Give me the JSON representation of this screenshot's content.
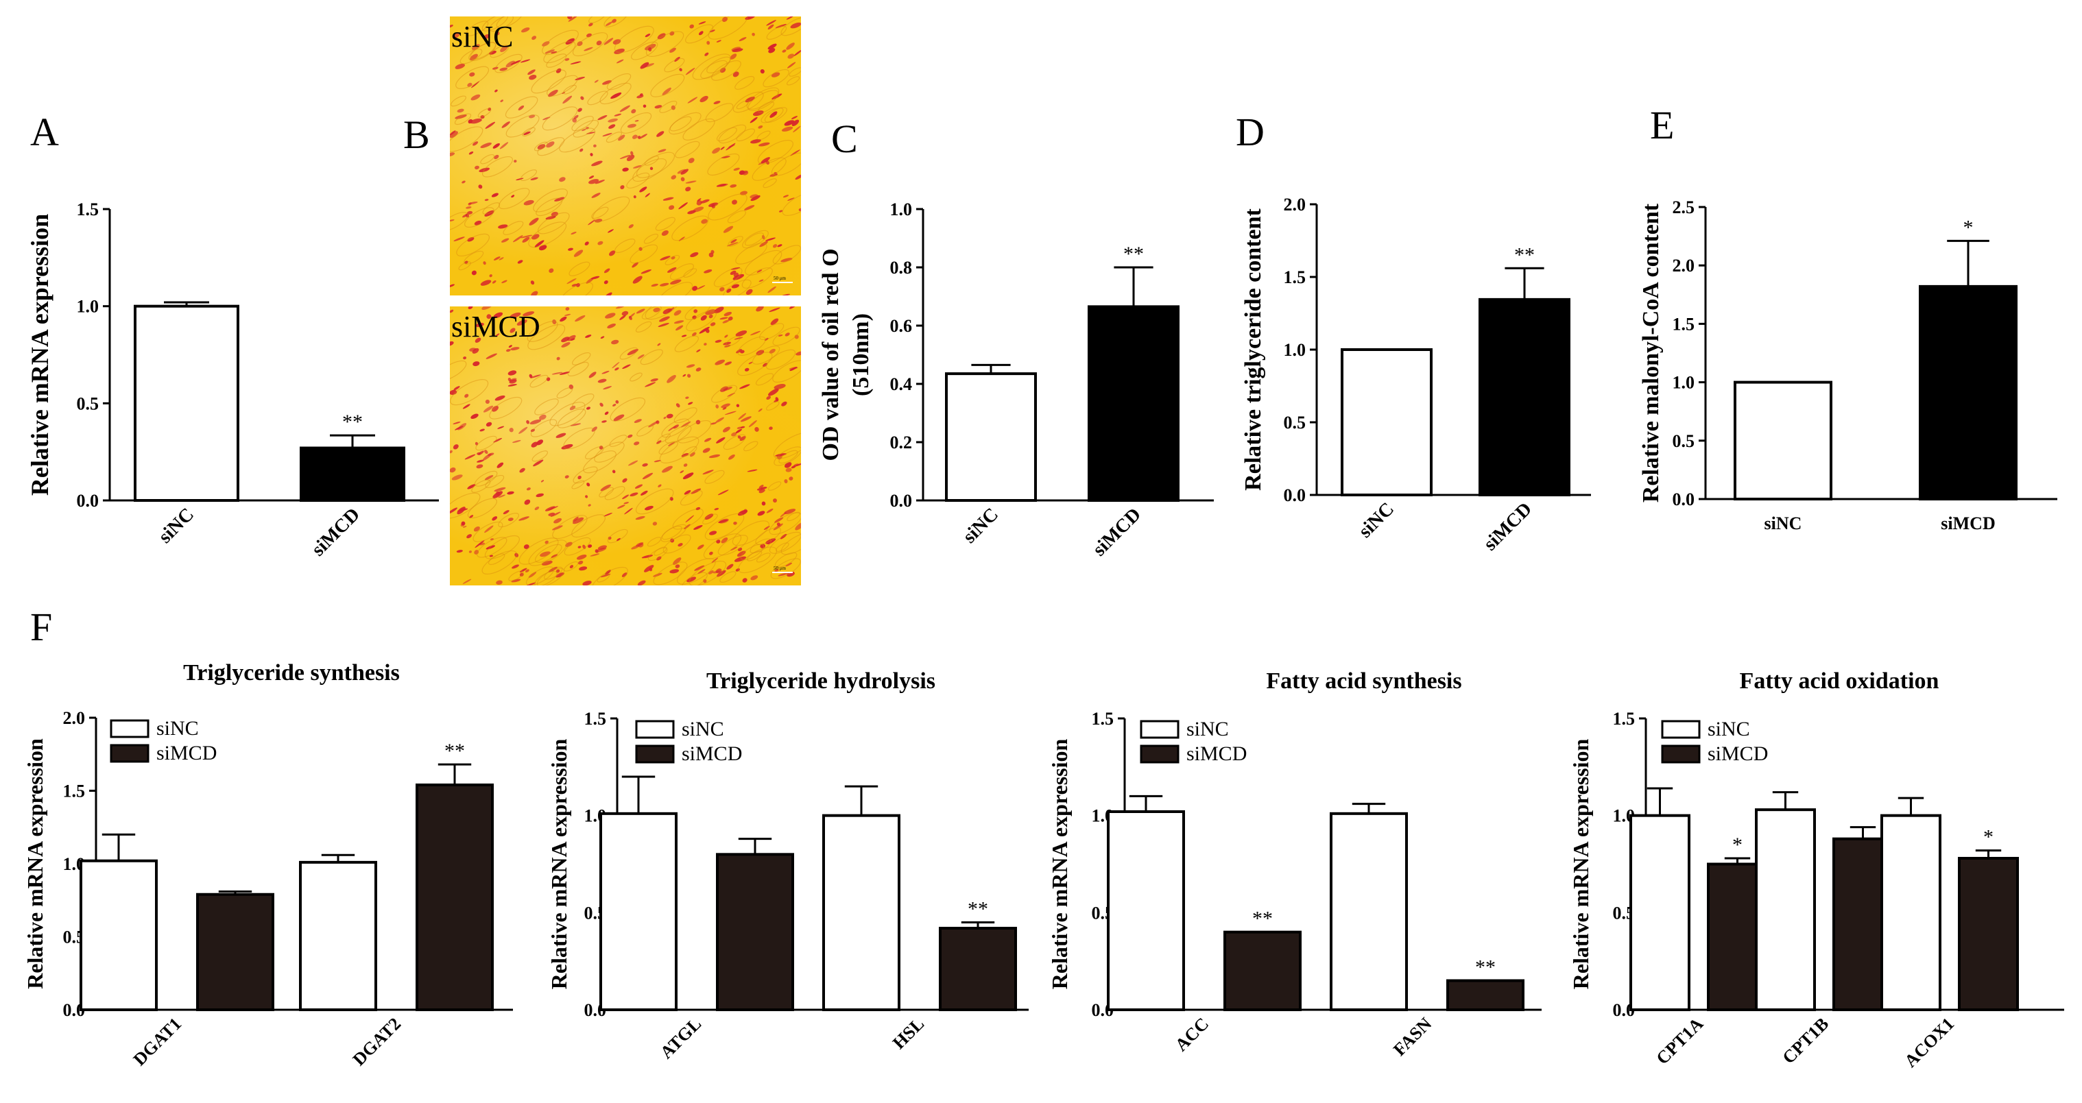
{
  "panels": {
    "A": "A",
    "B": "B",
    "C": "C",
    "D": "D",
    "E": "E",
    "F": "F"
  },
  "micrographs": [
    {
      "label": "siNC",
      "scale_bar": "50 μm"
    },
    {
      "label": "siMCD",
      "scale_bar": "50 μm"
    }
  ],
  "colors": {
    "control": "#ffffff",
    "treatment": "#000000",
    "treatment_f": "#231815",
    "stain_bg": "#f7c312",
    "stain_cells": "#d7262c"
  },
  "chart_data": [
    {
      "panel": "A",
      "type": "bar",
      "categories": [
        "siNC",
        "siMCD"
      ],
      "values": [
        1.0,
        0.27
      ],
      "errors": [
        0.02,
        0.065
      ],
      "significance": [
        "",
        "**"
      ],
      "ylabel": "Relative mRNA expression",
      "ylim": [
        0,
        1.5
      ],
      "yticks": [
        "0.0",
        "0.5",
        "1.0",
        "1.5"
      ]
    },
    {
      "panel": "C",
      "type": "bar",
      "categories": [
        "siNC",
        "siMCD"
      ],
      "values": [
        0.435,
        0.665
      ],
      "errors": [
        0.03,
        0.135
      ],
      "significance": [
        "",
        "**"
      ],
      "ylabel": [
        "OD value of oil red O",
        "(510nm)"
      ],
      "ylim": [
        0,
        1.0
      ],
      "yticks": [
        "0.0",
        "0.2",
        "0.4",
        "0.6",
        "0.8",
        "1.0"
      ]
    },
    {
      "panel": "D",
      "type": "bar",
      "categories": [
        "siNC",
        "siMCD"
      ],
      "values": [
        1.0,
        1.345
      ],
      "errors": [
        0,
        0.215
      ],
      "significance": [
        "",
        "**"
      ],
      "ylabel": "Relative triglyceride content",
      "ylim": [
        0,
        2.0
      ],
      "yticks": [
        "0.0",
        "0.5",
        "1.0",
        "1.5",
        "2.0"
      ]
    },
    {
      "panel": "E",
      "type": "bar",
      "categories": [
        "siNC",
        "siMCD"
      ],
      "values": [
        1.0,
        1.82
      ],
      "errors": [
        0,
        0.39
      ],
      "significance": [
        "",
        "*"
      ],
      "ylabel": "Relative malonyl-CoA content",
      "ylim": [
        0,
        2.5
      ],
      "yticks": [
        "0.0",
        "0.5",
        "1.0",
        "1.5",
        "2.0",
        "2.5"
      ]
    },
    {
      "panel": "F",
      "type": "bar",
      "title": "Triglyceride synthesis",
      "categories": [
        "DGAT1",
        "DGAT2"
      ],
      "series": [
        {
          "name": "siNC",
          "values": [
            1.02,
            1.01
          ],
          "errors": [
            0.18,
            0.05
          ],
          "significance": [
            "",
            ""
          ]
        },
        {
          "name": "siMCD",
          "values": [
            0.79,
            1.54
          ],
          "errors": [
            0.02,
            0.14
          ],
          "significance": [
            "",
            "**"
          ]
        }
      ],
      "ylabel": "Relative mRNA expression",
      "ylim": [
        0,
        2.0
      ],
      "yticks": [
        "0.0",
        "0.5",
        "1.0",
        "1.5",
        "2.0"
      ]
    },
    {
      "panel": "F",
      "type": "bar",
      "title": "Triglyceride hydrolysis",
      "categories": [
        "ATGL",
        "HSL"
      ],
      "series": [
        {
          "name": "siNC",
          "values": [
            1.01,
            1.0
          ],
          "errors": [
            0.19,
            0.15
          ],
          "significance": [
            "",
            ""
          ]
        },
        {
          "name": "siMCD",
          "values": [
            0.8,
            0.42
          ],
          "errors": [
            0.08,
            0.03
          ],
          "significance": [
            "",
            "**"
          ]
        }
      ],
      "ylabel": "Relative mRNA expression",
      "ylim": [
        0,
        1.5
      ],
      "yticks": [
        "0.0",
        "0.5",
        "1.0",
        "1.5"
      ]
    },
    {
      "panel": "F",
      "type": "bar",
      "title": "Fatty acid synthesis",
      "categories": [
        "ACC",
        "FASN"
      ],
      "series": [
        {
          "name": "siNC",
          "values": [
            1.02,
            1.01
          ],
          "errors": [
            0.08,
            0.05
          ],
          "significance": [
            "",
            ""
          ]
        },
        {
          "name": "siMCD",
          "values": [
            0.4,
            0.15
          ],
          "errors": [
            0,
            0
          ],
          "significance": [
            "**",
            "**"
          ]
        }
      ],
      "ylabel": "Relative mRNA expression",
      "ylim": [
        0,
        1.5
      ],
      "yticks": [
        "0.0",
        "0.5",
        "1.0",
        "1.5"
      ]
    },
    {
      "panel": "F",
      "type": "bar",
      "title": "Fatty acid oxidation",
      "categories": [
        "CPT1A",
        "CPT1B",
        "ACOX1"
      ],
      "series": [
        {
          "name": "siNC",
          "values": [
            1.0,
            1.03,
            1.0
          ],
          "errors": [
            0.14,
            0.09,
            0.09
          ],
          "significance": [
            "",
            "",
            ""
          ]
        },
        {
          "name": "siMCD",
          "values": [
            0.75,
            0.88,
            0.78
          ],
          "errors": [
            0.03,
            0.06,
            0.04
          ],
          "significance": [
            "*",
            "",
            "*"
          ]
        }
      ],
      "ylabel": "Relative mRNA expression",
      "ylim": [
        0,
        1.5
      ],
      "yticks": [
        "0.0",
        "0.5",
        "1.0",
        "1.5"
      ]
    }
  ]
}
